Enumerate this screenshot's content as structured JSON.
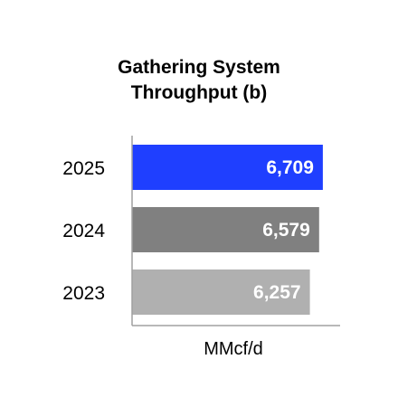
{
  "chart_data": {
    "type": "bar",
    "orientation": "horizontal",
    "title_lines": [
      "Gathering System",
      "Throughput (b)"
    ],
    "categories": [
      "2025",
      "2024",
      "2023"
    ],
    "values": [
      6709,
      6579,
      6257
    ],
    "value_labels": [
      "6,709",
      "6,579",
      "6,257"
    ],
    "colors": [
      "#1f3fff",
      "#808080",
      "#b0b0b0"
    ],
    "xlabel": "MMcf/d",
    "ylabel": "",
    "xlim": [
      0,
      7000
    ],
    "grid": false,
    "legend": "none"
  }
}
